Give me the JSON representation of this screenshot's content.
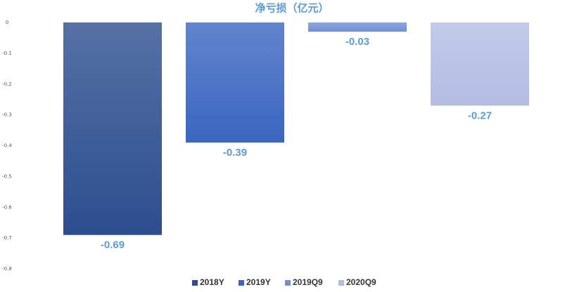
{
  "chart_data": {
    "type": "bar",
    "title": "净亏损（亿元）",
    "series": [
      {
        "name": "2018Y",
        "color": "#2c4d8e",
        "values": [
          -0.69
        ]
      },
      {
        "name": "2019Y",
        "color": "#3a66c0",
        "values": [
          -0.39
        ]
      },
      {
        "name": "2019Q9",
        "color": "#6f8fd6",
        "values": [
          -0.03
        ]
      },
      {
        "name": "2020Q9",
        "color": "#b3bde3",
        "values": [
          -0.27
        ]
      }
    ],
    "ylim": [
      -0.8,
      0
    ],
    "yticks": [
      0,
      -0.1,
      -0.2,
      -0.3,
      -0.4,
      -0.5,
      -0.6,
      -0.7,
      -0.8
    ],
    "legend": "bottom"
  }
}
